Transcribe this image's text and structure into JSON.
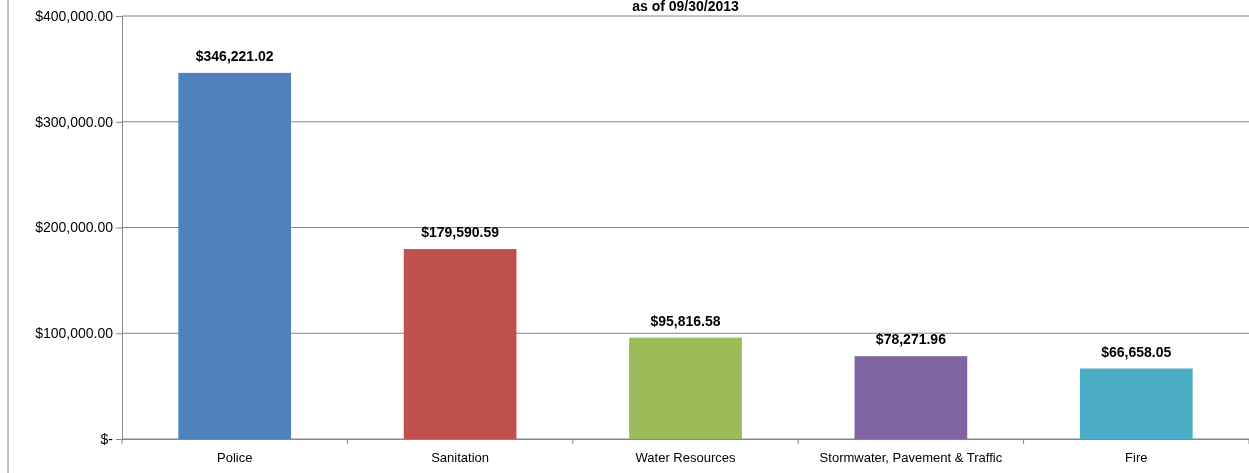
{
  "chart_data": {
    "type": "bar",
    "title": "as of 09/30/2013",
    "categories": [
      "Police",
      "Sanitation",
      "Water Resources",
      "Stormwater, Pavement & Traffic",
      "Fire"
    ],
    "values": [
      346221.02,
      179590.59,
      95816.58,
      78271.96,
      66658.05
    ],
    "colors": [
      "#4f81bd",
      "#c0504d",
      "#9bbb59",
      "#8064a2",
      "#4bacc6"
    ],
    "value_labels": [
      "$346,221.02",
      "$179,590.59",
      "$95,816.58",
      "$78,271.96",
      "$66,658.05"
    ],
    "ylim": [
      0,
      400000
    ],
    "yticks": [
      {
        "value": 0,
        "label": "$-"
      },
      {
        "value": 100000,
        "label": "$100,000.00"
      },
      {
        "value": 200000,
        "label": "$200,000.00"
      },
      {
        "value": 300000,
        "label": "$300,000.00"
      },
      {
        "value": 400000,
        "label": "$400,000.00"
      }
    ],
    "grid": "y"
  }
}
